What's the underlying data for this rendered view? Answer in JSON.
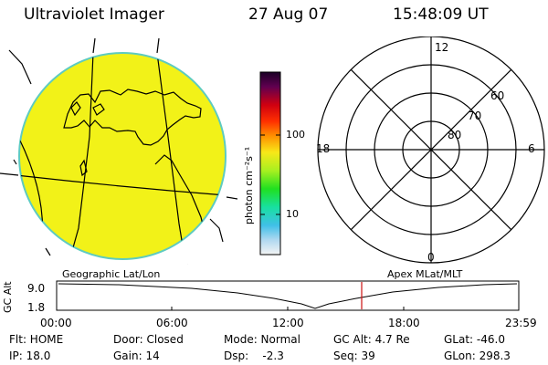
{
  "header": {
    "instrument": "Ultraviolet Imager",
    "date": "27 Aug 07",
    "time": "15:48:09 UT"
  },
  "colorbar": {
    "unit_label": "photon cm⁻²s⁻¹",
    "ticks": [
      "100",
      "10"
    ]
  },
  "polar": {
    "mlt_labels": [
      "12",
      "18",
      "6",
      "0"
    ],
    "lat_labels": [
      "60",
      "70",
      "80"
    ]
  },
  "panel_labels": {
    "left": "Geographic Lat/Lon",
    "right": "Apex MLat/MLT"
  },
  "altitude_plot": {
    "ylabel": "GC Alt",
    "yticks": [
      "9.0",
      "1.8"
    ],
    "xticks": [
      "00:00",
      "06:00",
      "12:00",
      "18:00",
      "23:59"
    ]
  },
  "status": {
    "flt": "Flt: HOME",
    "ip": "IP: 18.0",
    "door": "Door: Closed",
    "gain": "Gain: 14",
    "mode": "Mode: Normal",
    "dsp": "Dsp:    -2.3",
    "gc_alt": "GC Alt: 4.7 Re",
    "seq": "Seq: 39",
    "glat": "GLat: -46.0",
    "glon": "GLon: 298.3"
  }
}
